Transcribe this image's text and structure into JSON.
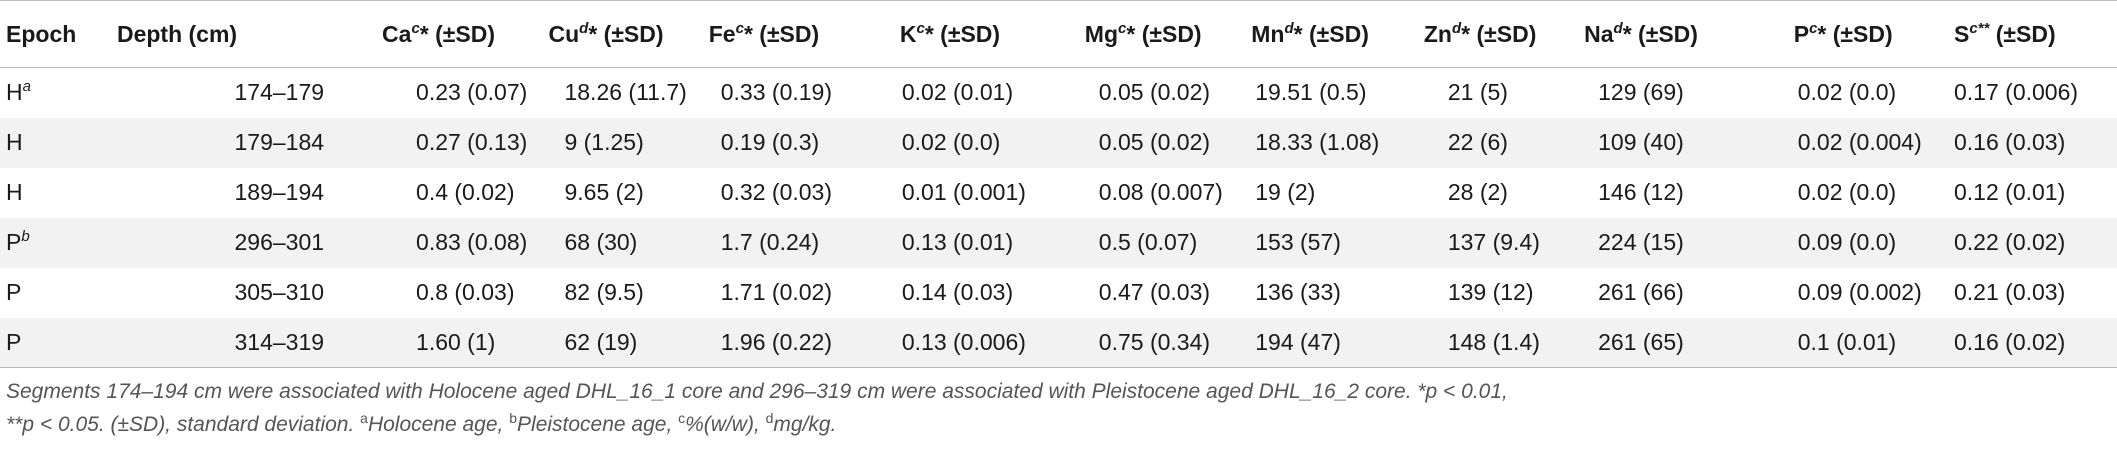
{
  "table": {
    "headers": [
      {
        "base": "Epoch",
        "sup": "",
        "tail": ""
      },
      {
        "base": "Depth (cm)",
        "sup": "",
        "tail": ""
      },
      {
        "base": "Ca",
        "sup": "c",
        "tail": "* (±SD)"
      },
      {
        "base": "Cu",
        "sup": "d",
        "tail": "* (±SD)"
      },
      {
        "base": "Fe",
        "sup": "c",
        "tail": "* (±SD)"
      },
      {
        "base": "K",
        "sup": "c",
        "tail": "* (±SD)"
      },
      {
        "base": "Mg",
        "sup": "c",
        "tail": "* (±SD)"
      },
      {
        "base": "Mn",
        "sup": "d",
        "tail": "* (±SD)"
      },
      {
        "base": "Zn",
        "sup": "d",
        "tail": "* (±SD)"
      },
      {
        "base": "Na",
        "sup": "d",
        "tail": "* (±SD)"
      },
      {
        "base": "P",
        "sup": "c",
        "tail": "* (±SD)"
      },
      {
        "base": "S",
        "sup": "c**",
        "tail": " (±SD)"
      }
    ],
    "rows": [
      {
        "epoch": "H",
        "epoch_sup": "a",
        "cells": [
          "174–179",
          "0.23 (0.07)",
          "18.26 (11.7)",
          "0.33 (0.19)",
          "0.02 (0.01)",
          "0.05 (0.02)",
          "19.51 (0.5)",
          "21 (5)",
          "129 (69)",
          "0.02 (0.0)",
          "0.17 (0.006)"
        ]
      },
      {
        "epoch": "H",
        "epoch_sup": "",
        "cells": [
          "179–184",
          "0.27 (0.13)",
          "9 (1.25)",
          "0.19 (0.3)",
          "0.02 (0.0)",
          "0.05 (0.02)",
          "18.33 (1.08)",
          "22 (6)",
          "109 (40)",
          "0.02 (0.004)",
          "0.16 (0.03)"
        ]
      },
      {
        "epoch": "H",
        "epoch_sup": "",
        "cells": [
          "189–194",
          "0.4 (0.02)",
          "9.65 (2)",
          "0.32 (0.03)",
          "0.01 (0.001)",
          "0.08 (0.007)",
          "19 (2)",
          "28 (2)",
          "146 (12)",
          "0.02 (0.0)",
          "0.12 (0.01)"
        ]
      },
      {
        "epoch": "P",
        "epoch_sup": "b",
        "cells": [
          "296–301",
          "0.83 (0.08)",
          "68 (30)",
          "1.7 (0.24)",
          "0.13 (0.01)",
          "0.5 (0.07)",
          "153 (57)",
          "137 (9.4)",
          "224 (15)",
          "0.09 (0.0)",
          "0.22 (0.02)"
        ]
      },
      {
        "epoch": "P",
        "epoch_sup": "",
        "cells": [
          "305–310",
          "0.8 (0.03)",
          "82 (9.5)",
          "1.71 (0.02)",
          "0.14 (0.03)",
          "0.47 (0.03)",
          "136 (33)",
          "139 (12)",
          "261 (66)",
          "0.09 (0.002)",
          "0.21 (0.03)"
        ]
      },
      {
        "epoch": "P",
        "epoch_sup": "",
        "cells": [
          "314–319",
          "1.60 (1)",
          "62 (19)",
          "1.96 (0.22)",
          "0.13 (0.006)",
          "0.75 (0.34)",
          "194 (47)",
          "148 (1.4)",
          "261 (65)",
          "0.1 (0.01)",
          "0.16 (0.02)"
        ]
      }
    ]
  },
  "footnote": {
    "line1": "Segments 174–194 cm were associated with Holocene aged DHL_16_1 core and 296–319 cm were associated with Pleistocene aged DHL_16_2 core. *p < 0.01,",
    "line2_a": "**p < 0.05. (±SD), standard deviation. ",
    "sup_a": "a",
    "text_a": "Holocene age, ",
    "sup_b": "b",
    "text_b": "Pleistocene age, ",
    "sup_c": "c",
    "text_c": "%(w/w), ",
    "sup_d": "d",
    "text_d": "mg/kg."
  }
}
